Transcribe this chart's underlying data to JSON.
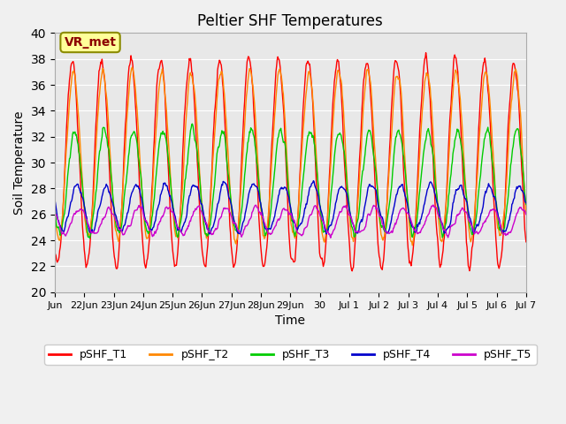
{
  "title": "Peltier SHF Temperatures",
  "xlabel": "Time",
  "ylabel": "Soil Temperature",
  "ylim": [
    20,
    40
  ],
  "xlim_days": 16,
  "background_color": "#e8e8e8",
  "grid_color": "#ffffff",
  "annotation_text": "VR_met",
  "annotation_bg": "#ffff99",
  "annotation_border": "#8B8B00",
  "annotation_text_color": "#8B0000",
  "series": [
    {
      "name": "pSHF_T1",
      "color": "#ff0000",
      "base": 23.5,
      "amp": 8.0,
      "phase": 0.0
    },
    {
      "name": "pSHF_T2",
      "color": "#ff8800",
      "base": 24.5,
      "amp": 6.5,
      "phase": 0.3
    },
    {
      "name": "pSHF_T3",
      "color": "#00cc00",
      "base": 25.5,
      "amp": 4.5,
      "phase": 0.8
    },
    {
      "name": "pSHF_T4",
      "color": "#0000cc",
      "base": 25.5,
      "amp": 1.8,
      "phase": 1.5
    },
    {
      "name": "pSHF_T5",
      "color": "#cc00cc",
      "base": 25.0,
      "amp": 1.2,
      "phase": 2.0
    }
  ],
  "tick_labels": [
    "Jun",
    "22Jun",
    "23Jun",
    "24Jun",
    "25Jun",
    "26Jun",
    "27Jun",
    "28Jun",
    "29Jun",
    "30",
    "Jul 1",
    "Jul 2",
    "Jul 3",
    "Jul 4",
    "Jul 5",
    "Jul 6",
    "Jul 7"
  ],
  "tick_positions": [
    0,
    1,
    2,
    3,
    4,
    5,
    6,
    7,
    8,
    9,
    10,
    11,
    12,
    13,
    14,
    15,
    16
  ]
}
